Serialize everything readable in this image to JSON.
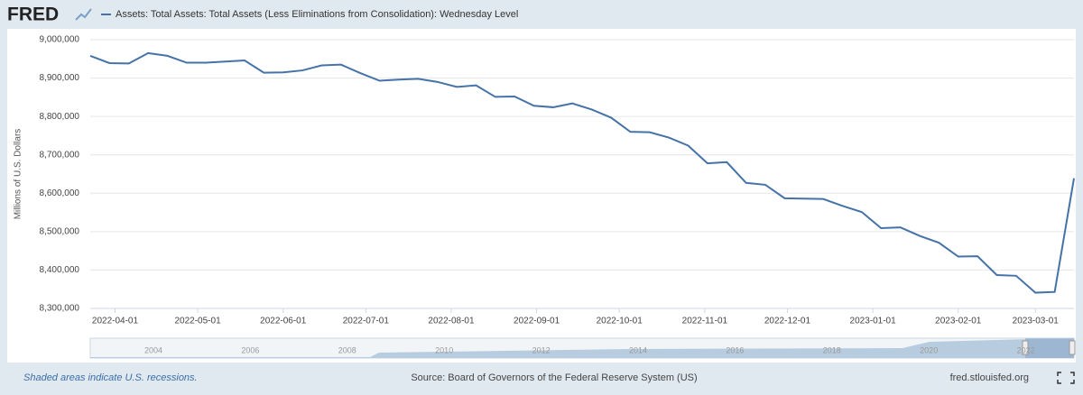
{
  "logo": "FRED",
  "chart_data": {
    "type": "line",
    "series": [
      {
        "name": "Assets: Total Assets: Total Assets (Less Eliminations from Consolidation): Wednesday Level",
        "color": "#4572a7",
        "values": [
          8958000,
          8939000,
          8938000,
          8965000,
          8958000,
          8940000,
          8940000,
          8943000,
          8946000,
          8914000,
          8915000,
          8920000,
          8933000,
          8935000,
          8913000,
          8893000,
          8896000,
          8898000,
          8890000,
          8877000,
          8881000,
          8851000,
          8852000,
          8828000,
          8824000,
          8834000,
          8818000,
          8797000,
          8760000,
          8759000,
          8745000,
          8724000,
          8678000,
          8681000,
          8627000,
          8622000,
          8587000,
          8586000,
          8585000,
          8567000,
          8551000,
          8509000,
          8511000,
          8489000,
          8471000,
          8435000,
          8436000,
          8387000,
          8385000,
          8341000,
          8343000,
          8639000
        ]
      }
    ],
    "x": [
      "2022-03-23",
      "2022-03-30",
      "2022-04-06",
      "2022-04-13",
      "2022-04-20",
      "2022-04-27",
      "2022-05-04",
      "2022-05-11",
      "2022-05-18",
      "2022-05-25",
      "2022-06-01",
      "2022-06-08",
      "2022-06-15",
      "2022-06-22",
      "2022-06-29",
      "2022-07-06",
      "2022-07-13",
      "2022-07-20",
      "2022-07-27",
      "2022-08-03",
      "2022-08-10",
      "2022-08-17",
      "2022-08-24",
      "2022-08-31",
      "2022-09-07",
      "2022-09-14",
      "2022-09-21",
      "2022-09-28",
      "2022-10-05",
      "2022-10-12",
      "2022-10-19",
      "2022-10-26",
      "2022-11-02",
      "2022-11-09",
      "2022-11-16",
      "2022-11-23",
      "2022-11-30",
      "2022-12-07",
      "2022-12-14",
      "2022-12-21",
      "2022-12-28",
      "2023-01-04",
      "2023-01-11",
      "2023-01-18",
      "2023-01-25",
      "2023-02-01",
      "2023-02-08",
      "2023-02-15",
      "2023-02-22",
      "2023-03-01",
      "2023-03-08",
      "2023-03-15"
    ],
    "xlim": [
      "2022-03-23",
      "2023-03-15"
    ],
    "xticks": [
      "2022-04-01",
      "2022-05-01",
      "2022-06-01",
      "2022-07-01",
      "2022-08-01",
      "2022-09-01",
      "2022-10-01",
      "2022-11-01",
      "2022-12-01",
      "2023-01-01",
      "2023-02-01",
      "2023-03-01"
    ],
    "ylabel": "Millions of U.S. Dollars",
    "ylim": [
      8300000,
      9000000
    ],
    "yticks": [
      {
        "value": 8300000,
        "label": "8,300,000"
      },
      {
        "value": 8400000,
        "label": "8,400,000"
      },
      {
        "value": 8500000,
        "label": "8,500,000"
      },
      {
        "value": 8600000,
        "label": "8,600,000"
      },
      {
        "value": 8700000,
        "label": "8,700,000"
      },
      {
        "value": 8800000,
        "label": "8,800,000"
      },
      {
        "value": 8900000,
        "label": "8,900,000"
      },
      {
        "value": 9000000,
        "label": "9,000,000"
      }
    ],
    "grid": true
  },
  "navigator": {
    "labels": [
      "2004",
      "2006",
      "2008",
      "2010",
      "2012",
      "2014",
      "2016",
      "2018",
      "2020",
      "2022"
    ]
  },
  "footer": {
    "note": "Shaded areas indicate U.S. recessions.",
    "source": "Source: Board of Governors of the Federal Reserve System (US)",
    "site": "fred.stlouisfed.org"
  }
}
